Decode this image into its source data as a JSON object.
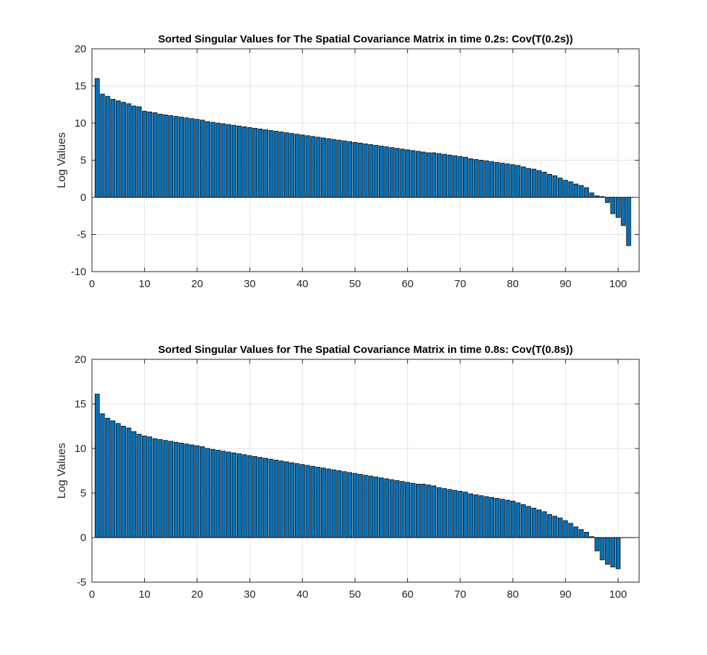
{
  "chart_data": [
    {
      "type": "bar",
      "title": "Sorted Singular Values for The Spatial Covariance Matrix in time 0.2s: Cov(T(0.2s))",
      "xlabel": "",
      "ylabel": "Log Values",
      "xlim": [
        0,
        104
      ],
      "ylim": [
        -10,
        20
      ],
      "xticks": [
        0,
        10,
        20,
        30,
        40,
        50,
        60,
        70,
        80,
        90,
        100
      ],
      "yticks": [
        -10,
        -5,
        0,
        5,
        10,
        15,
        20
      ],
      "grid": true,
      "bar_color": "#0072BD",
      "x": [
        1,
        2,
        3,
        4,
        5,
        6,
        7,
        8,
        9,
        10,
        11,
        12,
        13,
        14,
        15,
        16,
        17,
        18,
        19,
        20,
        21,
        22,
        23,
        24,
        25,
        26,
        27,
        28,
        29,
        30,
        31,
        32,
        33,
        34,
        35,
        36,
        37,
        38,
        39,
        40,
        41,
        42,
        43,
        44,
        45,
        46,
        47,
        48,
        49,
        50,
        51,
        52,
        53,
        54,
        55,
        56,
        57,
        58,
        59,
        60,
        61,
        62,
        63,
        64,
        65,
        66,
        67,
        68,
        69,
        70,
        71,
        72,
        73,
        74,
        75,
        76,
        77,
        78,
        79,
        80,
        81,
        82,
        83,
        84,
        85,
        86,
        87,
        88,
        89,
        90,
        91,
        92,
        93,
        94,
        95,
        96,
        97,
        98,
        99,
        100,
        101,
        102,
        103
      ],
      "values": [
        16.0,
        13.9,
        13.6,
        13.2,
        13.0,
        12.8,
        12.6,
        12.3,
        12.2,
        11.6,
        11.5,
        11.4,
        11.2,
        11.1,
        11.0,
        10.9,
        10.8,
        10.7,
        10.6,
        10.5,
        10.4,
        10.2,
        10.1,
        10.0,
        9.9,
        9.8,
        9.7,
        9.6,
        9.5,
        9.4,
        9.3,
        9.2,
        9.1,
        9.0,
        8.9,
        8.8,
        8.7,
        8.6,
        8.5,
        8.4,
        8.3,
        8.2,
        8.1,
        8.0,
        7.9,
        7.8,
        7.7,
        7.6,
        7.5,
        7.4,
        7.3,
        7.2,
        7.1,
        7.0,
        6.9,
        6.8,
        6.7,
        6.6,
        6.5,
        6.4,
        6.3,
        6.2,
        6.1,
        6.0,
        6.0,
        5.9,
        5.8,
        5.7,
        5.6,
        5.5,
        5.4,
        5.2,
        5.1,
        5.0,
        4.9,
        4.8,
        4.7,
        4.6,
        4.5,
        4.4,
        4.3,
        4.1,
        3.9,
        3.8,
        3.6,
        3.4,
        3.1,
        2.9,
        2.6,
        2.3,
        2.1,
        1.8,
        1.6,
        1.3,
        0.6,
        0.2,
        0.1,
        -0.7,
        -2.2,
        -2.7,
        -3.8,
        -6.5,
        0
      ]
    },
    {
      "type": "bar",
      "title": "Sorted Singular Values for The Spatial Covariance Matrix in time 0.8s: Cov(T(0.8s))",
      "xlabel": "",
      "ylabel": "Log Values",
      "xlim": [
        0,
        104
      ],
      "ylim": [
        -5,
        20
      ],
      "xticks": [
        0,
        10,
        20,
        30,
        40,
        50,
        60,
        70,
        80,
        90,
        100
      ],
      "yticks": [
        -5,
        0,
        5,
        10,
        15,
        20
      ],
      "grid": true,
      "bar_color": "#0072BD",
      "x": [
        1,
        2,
        3,
        4,
        5,
        6,
        7,
        8,
        9,
        10,
        11,
        12,
        13,
        14,
        15,
        16,
        17,
        18,
        19,
        20,
        21,
        22,
        23,
        24,
        25,
        26,
        27,
        28,
        29,
        30,
        31,
        32,
        33,
        34,
        35,
        36,
        37,
        38,
        39,
        40,
        41,
        42,
        43,
        44,
        45,
        46,
        47,
        48,
        49,
        50,
        51,
        52,
        53,
        54,
        55,
        56,
        57,
        58,
        59,
        60,
        61,
        62,
        63,
        64,
        65,
        66,
        67,
        68,
        69,
        70,
        71,
        72,
        73,
        74,
        75,
        76,
        77,
        78,
        79,
        80,
        81,
        82,
        83,
        84,
        85,
        86,
        87,
        88,
        89,
        90,
        91,
        92,
        93,
        94,
        95,
        96,
        97,
        98,
        99,
        100,
        101,
        102,
        103
      ],
      "values": [
        16.1,
        13.9,
        13.4,
        13.1,
        12.8,
        12.5,
        12.3,
        11.9,
        11.6,
        11.4,
        11.3,
        11.1,
        11.0,
        10.9,
        10.8,
        10.7,
        10.6,
        10.5,
        10.4,
        10.3,
        10.2,
        10.0,
        9.9,
        9.8,
        9.7,
        9.6,
        9.5,
        9.4,
        9.3,
        9.2,
        9.1,
        9.0,
        8.9,
        8.8,
        8.7,
        8.6,
        8.5,
        8.4,
        8.3,
        8.2,
        8.1,
        8.0,
        7.9,
        7.8,
        7.7,
        7.6,
        7.5,
        7.4,
        7.3,
        7.2,
        7.1,
        7.0,
        6.9,
        6.8,
        6.7,
        6.6,
        6.5,
        6.4,
        6.3,
        6.2,
        6.1,
        6.0,
        6.0,
        5.9,
        5.8,
        5.6,
        5.5,
        5.4,
        5.3,
        5.2,
        5.1,
        4.9,
        4.8,
        4.7,
        4.6,
        4.5,
        4.4,
        4.3,
        4.2,
        4.1,
        3.9,
        3.7,
        3.5,
        3.3,
        3.1,
        2.9,
        2.6,
        2.4,
        2.2,
        1.9,
        1.6,
        1.2,
        0.9,
        0.6,
        0.1,
        -1.5,
        -2.5,
        -3.0,
        -3.3,
        -3.5,
        0,
        0,
        0
      ]
    }
  ]
}
